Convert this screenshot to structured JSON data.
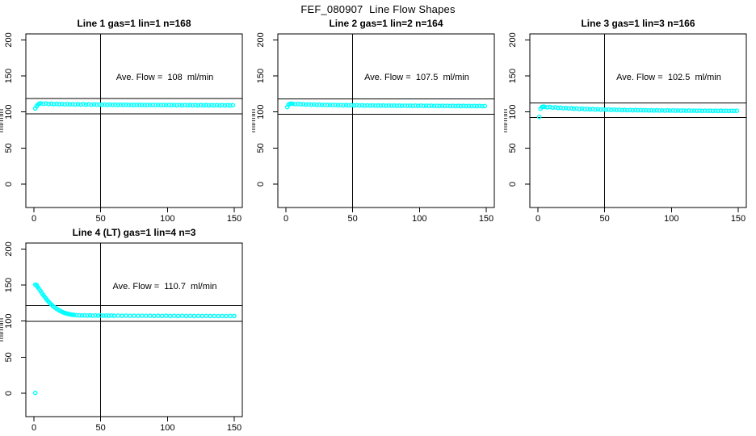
{
  "page": {
    "title": "FEF_080907  Line Flow Shapes"
  },
  "colors": {
    "marker": "#00FFFF",
    "axis": "#000000",
    "background": "#FFFFFF"
  },
  "chart_data": [
    {
      "type": "scatter",
      "title": "Line 1 gas=1 lin=1 n=168",
      "annotation": "Ave. Flow =  108  ml/min",
      "ave_flow": 108,
      "ylabel": "ml/min",
      "xticks": [
        0,
        50,
        100,
        150
      ],
      "yticks": [
        0,
        50,
        100,
        150,
        200
      ],
      "xlim": [
        -6,
        156
      ],
      "ylim": [
        -34,
        208
      ],
      "vline_x": 50,
      "ref_lines_y": [
        97.2,
        118.8
      ],
      "marker": {
        "shape": "open-circle",
        "color": "#00FFFF"
      },
      "points": [
        [
          1,
          104.8
        ],
        [
          2,
          107.9
        ],
        [
          3,
          110.3
        ],
        [
          4,
          111.7
        ],
        [
          5,
          112.0
        ],
        [
          7,
          111.4
        ],
        [
          9,
          111.8
        ],
        [
          11,
          111.1
        ],
        [
          13,
          111.5
        ],
        [
          15,
          110.9
        ],
        [
          17,
          111.3
        ],
        [
          19,
          110.7
        ],
        [
          21,
          111.1
        ],
        [
          23,
          110.6
        ],
        [
          25,
          111.0
        ],
        [
          27,
          110.5
        ],
        [
          29,
          110.9
        ],
        [
          31,
          110.4
        ],
        [
          33,
          110.8
        ],
        [
          35,
          110.3
        ],
        [
          37,
          110.7
        ],
        [
          39,
          110.2
        ],
        [
          41,
          110.6
        ],
        [
          43,
          110.1
        ],
        [
          45,
          110.5
        ],
        [
          47,
          110.1
        ],
        [
          49,
          110.4
        ],
        [
          51,
          110.0
        ],
        [
          53,
          110.3
        ],
        [
          55,
          109.9
        ],
        [
          57,
          110.3
        ],
        [
          59,
          109.8
        ],
        [
          61,
          110.2
        ],
        [
          63,
          109.8
        ],
        [
          65,
          110.1
        ],
        [
          67,
          109.7
        ],
        [
          69,
          110.1
        ],
        [
          71,
          109.7
        ],
        [
          73,
          110.0
        ],
        [
          75,
          109.6
        ],
        [
          77,
          110.0
        ],
        [
          79,
          109.6
        ],
        [
          81,
          109.9
        ],
        [
          83,
          109.5
        ],
        [
          85,
          109.9
        ],
        [
          87,
          109.5
        ],
        [
          89,
          109.9
        ],
        [
          91,
          109.5
        ],
        [
          93,
          109.8
        ],
        [
          95,
          109.4
        ],
        [
          97,
          109.8
        ],
        [
          99,
          109.4
        ],
        [
          101,
          109.8
        ],
        [
          103,
          109.4
        ],
        [
          105,
          109.7
        ],
        [
          107,
          109.3
        ],
        [
          109,
          109.7
        ],
        [
          111,
          109.3
        ],
        [
          113,
          109.7
        ],
        [
          115,
          109.3
        ],
        [
          117,
          109.6
        ],
        [
          119,
          109.3
        ],
        [
          121,
          109.6
        ],
        [
          123,
          109.2
        ],
        [
          125,
          109.6
        ],
        [
          127,
          109.2
        ],
        [
          129,
          109.6
        ],
        [
          131,
          109.2
        ],
        [
          133,
          109.5
        ],
        [
          135,
          109.2
        ],
        [
          137,
          109.5
        ],
        [
          139,
          109.1
        ],
        [
          141,
          109.5
        ],
        [
          143,
          109.1
        ],
        [
          145,
          109.5
        ],
        [
          147,
          109.1
        ],
        [
          149,
          109.4
        ]
      ]
    },
    {
      "type": "scatter",
      "title": "Line 2 gas=1 lin=2 n=164",
      "annotation": "Ave. Flow =  107.5  ml/min",
      "ave_flow": 107.5,
      "ylabel": "ml/min",
      "xticks": [
        0,
        50,
        100,
        150
      ],
      "yticks": [
        0,
        50,
        100,
        150,
        200
      ],
      "xlim": [
        -6,
        156
      ],
      "ylim": [
        -34,
        208
      ],
      "vline_x": 50,
      "ref_lines_y": [
        96.75,
        118.25
      ],
      "marker": {
        "shape": "open-circle",
        "color": "#00FFFF"
      },
      "points": [
        [
          1,
          106.8
        ],
        [
          2,
          110.2
        ],
        [
          3,
          111.4
        ],
        [
          4,
          111.7
        ],
        [
          5,
          111.3
        ],
        [
          7,
          110.9
        ],
        [
          9,
          111.2
        ],
        [
          11,
          110.6
        ],
        [
          13,
          110.9
        ],
        [
          15,
          110.3
        ],
        [
          17,
          110.6
        ],
        [
          19,
          110.1
        ],
        [
          21,
          110.4
        ],
        [
          23,
          109.9
        ],
        [
          25,
          110.2
        ],
        [
          27,
          109.7
        ],
        [
          29,
          110.0
        ],
        [
          31,
          109.6
        ],
        [
          33,
          109.9
        ],
        [
          35,
          109.5
        ],
        [
          37,
          109.8
        ],
        [
          39,
          109.4
        ],
        [
          41,
          109.7
        ],
        [
          43,
          109.3
        ],
        [
          45,
          109.6
        ],
        [
          47,
          109.2
        ],
        [
          49,
          109.5
        ],
        [
          51,
          109.1
        ],
        [
          53,
          109.4
        ],
        [
          55,
          109.0
        ],
        [
          57,
          109.3
        ],
        [
          59,
          108.9
        ],
        [
          61,
          109.2
        ],
        [
          63,
          108.9
        ],
        [
          65,
          109.2
        ],
        [
          67,
          108.8
        ],
        [
          69,
          109.1
        ],
        [
          71,
          108.8
        ],
        [
          73,
          109.1
        ],
        [
          75,
          108.7
        ],
        [
          77,
          109.0
        ],
        [
          79,
          108.7
        ],
        [
          81,
          109.0
        ],
        [
          83,
          108.6
        ],
        [
          85,
          108.9
        ],
        [
          87,
          108.6
        ],
        [
          89,
          108.9
        ],
        [
          91,
          108.6
        ],
        [
          93,
          108.8
        ],
        [
          95,
          108.5
        ],
        [
          97,
          108.8
        ],
        [
          99,
          108.5
        ],
        [
          101,
          108.8
        ],
        [
          103,
          108.4
        ],
        [
          105,
          108.7
        ],
        [
          107,
          108.4
        ],
        [
          109,
          108.7
        ],
        [
          111,
          108.4
        ],
        [
          113,
          108.6
        ],
        [
          115,
          108.3
        ],
        [
          117,
          108.6
        ],
        [
          119,
          108.3
        ],
        [
          121,
          108.6
        ],
        [
          123,
          108.3
        ],
        [
          125,
          108.5
        ],
        [
          127,
          108.2
        ],
        [
          129,
          108.5
        ],
        [
          131,
          108.2
        ],
        [
          133,
          108.5
        ],
        [
          135,
          108.2
        ],
        [
          137,
          108.4
        ],
        [
          139,
          108.1
        ],
        [
          141,
          108.4
        ],
        [
          143,
          108.1
        ],
        [
          145,
          108.4
        ],
        [
          147,
          108.1
        ],
        [
          149,
          108.3
        ]
      ]
    },
    {
      "type": "scatter",
      "title": "Line 3 gas=1 lin=3 n=166",
      "annotation": "Ave. Flow =  102.5  ml/min",
      "ave_flow": 102.5,
      "ylabel": "ml/min",
      "xticks": [
        0,
        50,
        100,
        150
      ],
      "yticks": [
        0,
        50,
        100,
        150,
        200
      ],
      "xlim": [
        -6,
        156
      ],
      "ylim": [
        -34,
        208
      ],
      "vline_x": 50,
      "ref_lines_y": [
        92.25,
        112.75
      ],
      "marker": {
        "shape": "open-circle",
        "color": "#00FFFF"
      },
      "points": [
        [
          1,
          93.2
        ],
        [
          2,
          104.5
        ],
        [
          3,
          106.8
        ],
        [
          4,
          107.4
        ],
        [
          5,
          107.0
        ],
        [
          7,
          106.5
        ],
        [
          9,
          106.8
        ],
        [
          11,
          106.1
        ],
        [
          13,
          106.4
        ],
        [
          15,
          105.7
        ],
        [
          17,
          106.0
        ],
        [
          19,
          105.3
        ],
        [
          21,
          105.6
        ],
        [
          23,
          104.9
        ],
        [
          25,
          105.2
        ],
        [
          27,
          104.6
        ],
        [
          29,
          104.9
        ],
        [
          31,
          104.3
        ],
        [
          33,
          104.6
        ],
        [
          35,
          104.0
        ],
        [
          37,
          104.3
        ],
        [
          39,
          103.7
        ],
        [
          41,
          104.0
        ],
        [
          43,
          103.5
        ],
        [
          45,
          103.8
        ],
        [
          47,
          103.3
        ],
        [
          49,
          103.6
        ],
        [
          51,
          103.1
        ],
        [
          53,
          103.4
        ],
        [
          55,
          102.9
        ],
        [
          57,
          103.2
        ],
        [
          59,
          102.8
        ],
        [
          61,
          103.1
        ],
        [
          63,
          102.6
        ],
        [
          65,
          102.9
        ],
        [
          67,
          102.5
        ],
        [
          69,
          102.8
        ],
        [
          71,
          102.4
        ],
        [
          73,
          102.7
        ],
        [
          75,
          102.3
        ],
        [
          77,
          102.6
        ],
        [
          79,
          102.2
        ],
        [
          81,
          102.5
        ],
        [
          83,
          102.1
        ],
        [
          85,
          102.4
        ],
        [
          87,
          102.0
        ],
        [
          89,
          102.3
        ],
        [
          91,
          102.0
        ],
        [
          93,
          102.2
        ],
        [
          95,
          101.9
        ],
        [
          97,
          102.2
        ],
        [
          99,
          101.9
        ],
        [
          101,
          102.1
        ],
        [
          103,
          101.8
        ],
        [
          105,
          102.1
        ],
        [
          107,
          101.8
        ],
        [
          109,
          102.0
        ],
        [
          111,
          101.7
        ],
        [
          113,
          102.0
        ],
        [
          115,
          101.7
        ],
        [
          117,
          101.9
        ],
        [
          119,
          101.6
        ],
        [
          121,
          101.9
        ],
        [
          123,
          101.6
        ],
        [
          125,
          101.9
        ],
        [
          127,
          101.6
        ],
        [
          129,
          101.8
        ],
        [
          131,
          101.5
        ],
        [
          133,
          101.8
        ],
        [
          135,
          101.5
        ],
        [
          137,
          101.8
        ],
        [
          139,
          101.5
        ],
        [
          141,
          101.7
        ],
        [
          143,
          101.4
        ],
        [
          145,
          101.7
        ],
        [
          147,
          101.4
        ],
        [
          149,
          101.7
        ]
      ]
    },
    {
      "type": "scatter",
      "title": "Line 4 (LT) gas=1 lin=4 n=3",
      "annotation": "Ave. Flow =  110.7  ml/min",
      "ave_flow": 110.7,
      "ylabel": "ml/min",
      "xticks": [
        0,
        50,
        100,
        150
      ],
      "yticks": [
        0,
        50,
        100,
        150,
        200
      ],
      "xlim": [
        -6,
        156
      ],
      "ylim": [
        -34,
        208
      ],
      "vline_x": 50,
      "ref_lines_y": [
        99.63,
        121.77
      ],
      "marker": {
        "shape": "open-circle",
        "color": "#00FFFF"
      },
      "points": [
        [
          1,
          0.5
        ],
        [
          1,
          150.6
        ],
        [
          2,
          150.1
        ],
        [
          2,
          149.0
        ],
        [
          3,
          146.9
        ],
        [
          4,
          144.3
        ],
        [
          5,
          141.5
        ],
        [
          6,
          138.8
        ],
        [
          7,
          136.2
        ],
        [
          8,
          133.7
        ],
        [
          9,
          131.3
        ],
        [
          10,
          129.0
        ],
        [
          11,
          126.9
        ],
        [
          12,
          124.9
        ],
        [
          13,
          123.1
        ],
        [
          14,
          121.4
        ],
        [
          15,
          119.8
        ],
        [
          16,
          118.4
        ],
        [
          17,
          117.1
        ],
        [
          18,
          115.9
        ],
        [
          19,
          114.8
        ],
        [
          20,
          113.8
        ],
        [
          21,
          112.9
        ],
        [
          22,
          112.1
        ],
        [
          23,
          111.4
        ],
        [
          24,
          110.8
        ],
        [
          25,
          110.3
        ],
        [
          26,
          109.8
        ],
        [
          27,
          109.4
        ],
        [
          28,
          109.1
        ],
        [
          29,
          108.8
        ],
        [
          30,
          108.5
        ],
        [
          32,
          108.2
        ],
        [
          34,
          108.0
        ],
        [
          36,
          107.8
        ],
        [
          38,
          107.9
        ],
        [
          40,
          107.7
        ],
        [
          42,
          107.9
        ],
        [
          44,
          107.6
        ],
        [
          46,
          107.8
        ],
        [
          48,
          107.6
        ],
        [
          50,
          107.8
        ],
        [
          52,
          107.5
        ],
        [
          54,
          107.7
        ],
        [
          56,
          107.5
        ],
        [
          58,
          107.7
        ],
        [
          60,
          107.4
        ],
        [
          63,
          107.6
        ],
        [
          66,
          107.4
        ],
        [
          69,
          107.6
        ],
        [
          72,
          107.3
        ],
        [
          75,
          107.5
        ],
        [
          78,
          107.3
        ],
        [
          81,
          107.5
        ],
        [
          84,
          107.3
        ],
        [
          87,
          107.4
        ],
        [
          90,
          107.2
        ],
        [
          93,
          107.4
        ],
        [
          96,
          107.2
        ],
        [
          99,
          107.4
        ],
        [
          102,
          107.1
        ],
        [
          105,
          107.3
        ],
        [
          108,
          107.1
        ],
        [
          111,
          107.3
        ],
        [
          114,
          107.1
        ],
        [
          117,
          107.2
        ],
        [
          120,
          107.0
        ],
        [
          123,
          107.2
        ],
        [
          126,
          107.0
        ],
        [
          129,
          107.2
        ],
        [
          132,
          107.0
        ],
        [
          135,
          107.1
        ],
        [
          138,
          106.9
        ],
        [
          141,
          107.1
        ],
        [
          144,
          106.9
        ],
        [
          147,
          107.1
        ],
        [
          150,
          107.0
        ]
      ]
    }
  ]
}
